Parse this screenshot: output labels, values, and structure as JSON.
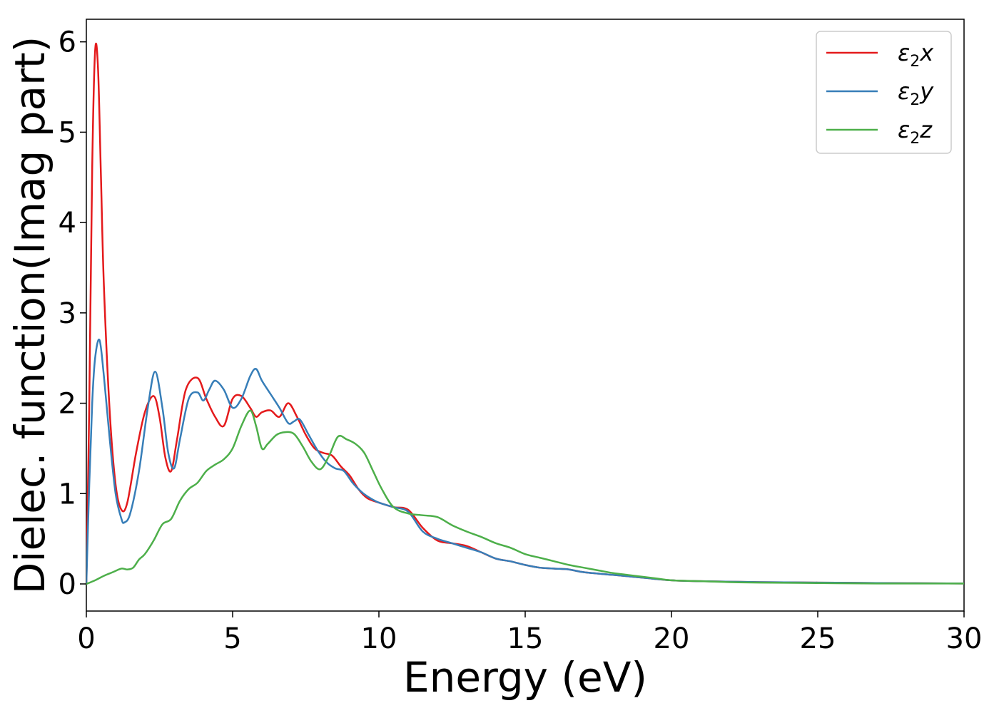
{
  "chart_data": {
    "type": "line",
    "title": "",
    "xlabel": "Energy (eV)",
    "ylabel": "Dielec. function(Imag part)",
    "xlim": [
      0,
      30
    ],
    "ylim": [
      -0.3,
      6.25
    ],
    "xticks": [
      0,
      5,
      10,
      15,
      20,
      25,
      30
    ],
    "yticks": [
      0,
      1,
      2,
      3,
      4,
      5,
      6
    ],
    "xtick_labels": [
      "0",
      "5",
      "10",
      "15",
      "20",
      "25",
      "30"
    ],
    "ytick_labels": [
      "0",
      "1",
      "2",
      "3",
      "4",
      "5",
      "6"
    ],
    "grid": false,
    "legend_position": "top-right",
    "series": [
      {
        "name": "ε₂x",
        "label_main": "ε",
        "label_sub": "2",
        "label_suffix": "x",
        "color": "#e41a1c",
        "x": [
          0,
          0.1,
          0.2,
          0.3,
          0.4,
          0.5,
          0.6,
          0.8,
          1.0,
          1.2,
          1.4,
          1.7,
          2.0,
          2.3,
          2.5,
          2.7,
          2.9,
          3.1,
          3.4,
          3.8,
          4.1,
          4.4,
          4.7,
          5.0,
          5.3,
          5.6,
          5.8,
          6.0,
          6.3,
          6.6,
          6.9,
          7.2,
          7.5,
          7.8,
          8.1,
          8.4,
          8.7,
          9.0,
          9.3,
          9.6,
          10.0,
          10.5,
          11.0,
          11.5,
          12.0,
          12.5,
          13.0,
          13.5,
          14.0,
          14.5,
          15.0,
          15.5,
          16.0,
          16.5,
          17.0,
          18.0,
          19.0,
          20.0,
          21.0,
          22.0,
          23.0,
          25.0,
          27.0,
          30.0
        ],
        "y": [
          0.0,
          2.0,
          4.6,
          5.9,
          5.7,
          4.5,
          3.3,
          1.9,
          1.1,
          0.82,
          0.9,
          1.45,
          1.9,
          2.08,
          1.85,
          1.4,
          1.25,
          1.6,
          2.15,
          2.28,
          2.05,
          1.85,
          1.75,
          2.05,
          2.08,
          1.95,
          1.85,
          1.9,
          1.92,
          1.85,
          2.0,
          1.85,
          1.65,
          1.5,
          1.45,
          1.42,
          1.3,
          1.2,
          1.05,
          0.95,
          0.9,
          0.85,
          0.82,
          0.62,
          0.48,
          0.45,
          0.42,
          0.35,
          0.28,
          0.25,
          0.21,
          0.18,
          0.17,
          0.16,
          0.13,
          0.1,
          0.07,
          0.04,
          0.03,
          0.025,
          0.02,
          0.015,
          0.01,
          0.005
        ]
      },
      {
        "name": "ε₂y",
        "label_main": "ε",
        "label_sub": "2",
        "label_suffix": "y",
        "color": "#377eb8",
        "x": [
          0,
          0.1,
          0.2,
          0.3,
          0.45,
          0.6,
          0.8,
          1.0,
          1.2,
          1.3,
          1.5,
          1.8,
          2.1,
          2.35,
          2.6,
          2.8,
          3.0,
          3.2,
          3.5,
          3.8,
          4.0,
          4.2,
          4.4,
          4.7,
          5.0,
          5.3,
          5.6,
          5.8,
          6.0,
          6.3,
          6.6,
          6.9,
          7.1,
          7.3,
          7.6,
          7.9,
          8.2,
          8.5,
          8.8,
          9.1,
          9.4,
          9.7,
          10.0,
          10.5,
          11.0,
          11.5,
          12.0,
          12.5,
          13.0,
          13.5,
          14.0,
          14.5,
          15.0,
          15.5,
          16.0,
          16.5,
          17.0,
          18.0,
          19.0,
          20.0,
          21.0,
          22.0,
          23.0,
          25.0,
          27.0,
          30.0
        ],
        "y": [
          0.0,
          1.1,
          2.0,
          2.5,
          2.7,
          2.3,
          1.6,
          1.0,
          0.72,
          0.68,
          0.78,
          1.25,
          1.95,
          2.35,
          1.95,
          1.45,
          1.28,
          1.6,
          2.05,
          2.12,
          2.03,
          2.15,
          2.25,
          2.15,
          1.95,
          2.05,
          2.3,
          2.38,
          2.25,
          2.1,
          1.95,
          1.78,
          1.8,
          1.82,
          1.65,
          1.48,
          1.35,
          1.28,
          1.25,
          1.12,
          1.02,
          0.95,
          0.9,
          0.85,
          0.8,
          0.58,
          0.5,
          0.45,
          0.4,
          0.35,
          0.28,
          0.25,
          0.21,
          0.18,
          0.17,
          0.16,
          0.13,
          0.1,
          0.07,
          0.04,
          0.03,
          0.025,
          0.02,
          0.015,
          0.01,
          0.005
        ]
      },
      {
        "name": "ε₂z",
        "label_main": "ε",
        "label_sub": "2",
        "label_suffix": "z",
        "color": "#4daf4a",
        "x": [
          0,
          0.3,
          0.6,
          0.9,
          1.2,
          1.4,
          1.6,
          1.8,
          2.0,
          2.3,
          2.6,
          2.9,
          3.2,
          3.5,
          3.8,
          4.1,
          4.4,
          4.7,
          5.0,
          5.3,
          5.6,
          5.8,
          6.0,
          6.2,
          6.5,
          6.8,
          7.1,
          7.4,
          7.7,
          8.0,
          8.3,
          8.6,
          8.9,
          9.2,
          9.5,
          9.8,
          10.1,
          10.5,
          11.0,
          11.5,
          12.0,
          12.5,
          13.0,
          13.5,
          14.0,
          14.5,
          15.0,
          15.5,
          16.0,
          16.5,
          17.0,
          17.5,
          18.0,
          18.5,
          19.0,
          19.5,
          20.0,
          21.0,
          22.0,
          23.0,
          25.0,
          27.0,
          30.0
        ],
        "y": [
          0.0,
          0.04,
          0.09,
          0.13,
          0.17,
          0.16,
          0.18,
          0.27,
          0.33,
          0.48,
          0.66,
          0.72,
          0.92,
          1.05,
          1.12,
          1.25,
          1.32,
          1.38,
          1.5,
          1.75,
          1.92,
          1.75,
          1.5,
          1.55,
          1.65,
          1.68,
          1.66,
          1.52,
          1.35,
          1.27,
          1.42,
          1.63,
          1.6,
          1.55,
          1.45,
          1.25,
          1.05,
          0.85,
          0.78,
          0.76,
          0.74,
          0.65,
          0.58,
          0.52,
          0.45,
          0.4,
          0.33,
          0.29,
          0.25,
          0.21,
          0.18,
          0.15,
          0.12,
          0.1,
          0.08,
          0.06,
          0.04,
          0.03,
          0.02,
          0.015,
          0.01,
          0.005,
          0.005
        ]
      }
    ]
  }
}
